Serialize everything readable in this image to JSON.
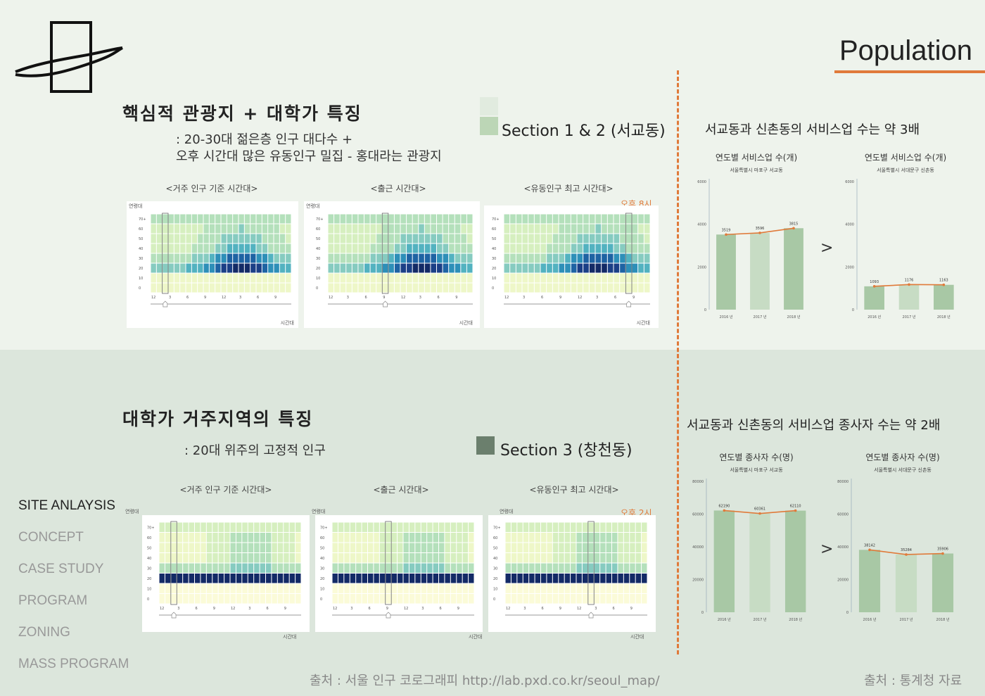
{
  "page": {
    "title": "Population",
    "colors": {
      "accent": "#e07a3a",
      "bar_dark": "#a8c8a5",
      "bar_light": "#c7dcc4",
      "line": "#e07a3a"
    }
  },
  "top": {
    "heading": "핵심적 관광지 + 대학가 특징",
    "sub1": ": 20-30대 젊은층 인구 대다수 +",
    "sub2": "오후 시간대 많은 유동인구 밀집 - 홍대라는 관광지",
    "section_label": "Section 1 & 2 (서교동)",
    "heatmaps": [
      {
        "title": "<거주 인구 기준 시간대>",
        "y_label": "연령대",
        "x_label": "시간대"
      },
      {
        "title": "<출근 시간대>",
        "y_label": "연령대",
        "x_label": "시간대"
      },
      {
        "title": "<유동인구 최고 시간대>",
        "y_label": "",
        "x_label": "시간대",
        "note": "오후 8시"
      }
    ]
  },
  "bottom": {
    "heading": "대학가 거주지역의 특징",
    "sub1": ": 20대 위주의 고정적 인구",
    "section_label": "Section 3 (창천동)",
    "heatmaps": [
      {
        "title": "<거주 인구 기준 시간대>",
        "y_label": "연령대",
        "x_label": "시간대"
      },
      {
        "title": "<출근 시간대>",
        "y_label": "연령대",
        "x_label": "시간대"
      },
      {
        "title": "<유동인구 최고 시간대>",
        "y_label": "연령대",
        "x_label": "시간대",
        "note": "오후 2시"
      }
    ]
  },
  "nav": {
    "items": [
      "SITE ANLAYSIS",
      "CONCEPT",
      "CASE STUDY",
      "PROGRAM",
      "ZONING",
      "MASS PROGRAM"
    ],
    "active_index": 0
  },
  "heatmap_axes": {
    "age_ticks_top": [
      "70+",
      "60",
      "50",
      "40",
      "30",
      "20",
      "10",
      "0"
    ],
    "age_ticks_bottom": [
      "70+",
      "60",
      "50",
      "40",
      "30",
      "20",
      "10",
      "0"
    ],
    "hour_ticks": [
      "12",
      "3",
      "6",
      "9",
      "12",
      "3",
      "6",
      "9"
    ]
  },
  "charts": {
    "sep": ">",
    "service_heading": "서교동과 신촌동의 서비스업 수는 약 3배",
    "employee_heading": "서교동과 신촌동의 서비스업 종사자 수는 약 2배",
    "source": "출처 : 통계청 자료"
  },
  "chart_data": [
    {
      "type": "bar",
      "title": "연도별 서비스업 수(개)",
      "subtitle": "서울특별시 마포구 서교동",
      "categories": [
        "2016 년",
        "2017 년",
        "2018 년"
      ],
      "values": [
        3519,
        3596,
        3815
      ],
      "ylim": [
        0,
        6000
      ],
      "y_ticks": [
        "0",
        "2000",
        "4000",
        "6000"
      ],
      "grid": false
    },
    {
      "type": "bar",
      "title": "연도별 서비스업 수(개)",
      "subtitle": "서울특별시 서대문구 신촌동",
      "categories": [
        "2016 년",
        "2017 년",
        "2018 년"
      ],
      "values": [
        1093,
        1176,
        1163
      ],
      "ylim": [
        0,
        6000
      ],
      "y_ticks": [
        "0",
        "2000",
        "4000",
        "6000"
      ],
      "grid": false
    },
    {
      "type": "bar",
      "title": "연도별 종사자 수(명)",
      "subtitle": "서울특별시 마포구 서교동",
      "categories": [
        "2016 년",
        "2017 년",
        "2018 년"
      ],
      "values": [
        62190,
        60361,
        62110
      ],
      "ylim": [
        0,
        80000
      ],
      "y_ticks": [
        "0",
        "20000",
        "40000",
        "60000",
        "80000"
      ],
      "grid": false
    },
    {
      "type": "bar",
      "title": "연도별 종사자 수(명)",
      "subtitle": "서울특별시 서대문구 신촌동",
      "categories": [
        "2016 년",
        "2017 년",
        "2018 년"
      ],
      "values": [
        38142,
        35284,
        35906
      ],
      "ylim": [
        0,
        80000
      ],
      "y_ticks": [
        "0",
        "20000",
        "40000",
        "60000",
        "80000"
      ],
      "grid": false
    }
  ],
  "footer": {
    "source_left": "출처 : 서울 인구 코로그래피 http://lab.pxd.co.kr/seoul_map/"
  }
}
